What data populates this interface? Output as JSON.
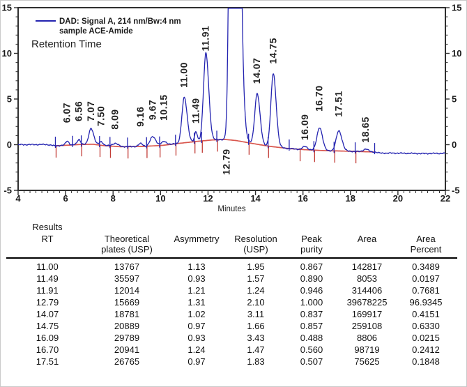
{
  "chart_data": {
    "type": "line",
    "title": "",
    "xlabel": "Minutes",
    "ylabel": "",
    "xlim": [
      4,
      22
    ],
    "ylim": [
      -5,
      15
    ],
    "x_major_ticks": [
      4,
      6,
      8,
      10,
      12,
      14,
      16,
      18,
      20,
      22
    ],
    "x_minor_step": 0.25,
    "y_major_ticks": [
      15,
      10,
      5,
      0,
      -5
    ],
    "y_minor_step": 1,
    "grid": false,
    "legend": {
      "line1": "DAD: Signal A, 214 nm/Bw:4 nm",
      "line2": "sample ACE-Amide",
      "retention_label": "Retention Time",
      "position": "top-left"
    },
    "series_color": "#2323b0",
    "baseline_color": "#d9574e",
    "tick_down_color": "#c23b35",
    "frame_color": "#2f2f2f",
    "peaks": [
      {
        "rt": "6.07",
        "t": 6.07,
        "h": 0.45,
        "sl": 0.07,
        "sr": 0.07,
        "gap": 26
      },
      {
        "rt": "6.56",
        "t": 6.56,
        "h": 0.55,
        "sl": 0.07,
        "sr": 0.07,
        "gap": 26
      },
      {
        "rt": "7.07",
        "t": 7.07,
        "h": 1.75,
        "sl": 0.09,
        "sr": 0.11,
        "gap": 10
      },
      {
        "rt": "7.50",
        "t": 7.5,
        "h": 0.4,
        "sl": 0.08,
        "sr": 0.08,
        "gap": 22
      },
      {
        "rt": "8.09",
        "t": 8.09,
        "h": 0.32,
        "sl": 0.13,
        "sr": 0.13,
        "gap": 20
      },
      {
        "rt": "9.16",
        "t": 9.16,
        "h": 0.32,
        "sl": 0.09,
        "sr": 0.09,
        "gap": 24
      },
      {
        "rt": "9.67",
        "t": 9.67,
        "h": 1.0,
        "sl": 0.11,
        "sr": 0.13,
        "gap": 24
      },
      {
        "rt": "10.15",
        "t": 10.15,
        "h": 0.4,
        "sl": 0.11,
        "sr": 0.11,
        "gap": 30
      },
      {
        "rt": "11.00",
        "t": 11.0,
        "h": 4.95,
        "sl": 0.1,
        "sr": 0.12,
        "gap": 14
      },
      {
        "rt": "11.49",
        "t": 11.49,
        "h": 1.05,
        "sl": 0.055,
        "sr": 0.06,
        "gap": 12
      },
      {
        "rt": "11.91",
        "t": 11.91,
        "h": 9.55,
        "sl": 0.1,
        "sr": 0.12,
        "gap": 3
      },
      {
        "rt": "12.79",
        "t": 12.79,
        "center": 13.05,
        "h": 120,
        "sl": 0.1,
        "sr": 0.19,
        "below": true
      },
      {
        "rt": "14.07",
        "t": 14.07,
        "h": 5.55,
        "sl": 0.1,
        "sr": 0.12,
        "gap": 14
      },
      {
        "rt": "14.75",
        "t": 14.75,
        "h": 8.0,
        "sl": 0.1,
        "sr": 0.12,
        "gap": 14
      },
      {
        "rt": "16.09",
        "t": 16.09,
        "h": 0.35,
        "sl": 0.1,
        "sr": 0.1,
        "gap": 9
      },
      {
        "rt": "16.70",
        "t": 16.7,
        "h": 2.5,
        "sl": 0.11,
        "sr": 0.12,
        "gap": 23
      },
      {
        "rt": "17.51",
        "t": 17.51,
        "h": 2.2,
        "sl": 0.11,
        "sr": 0.13,
        "gap": 20
      },
      {
        "rt": "18.65",
        "t": 18.65,
        "h": 0.3,
        "sl": 0.1,
        "sr": 0.1,
        "gap": 9
      }
    ],
    "drift_points": [
      [
        4,
        0.0
      ],
      [
        5.2,
        0.02
      ],
      [
        5.55,
        -0.12
      ],
      [
        6.1,
        -0.05
      ],
      [
        6.6,
        0.02
      ],
      [
        7.15,
        0.05
      ],
      [
        7.6,
        -0.1
      ],
      [
        8.3,
        -0.22
      ],
      [
        9.2,
        -0.2
      ],
      [
        10.1,
        -0.07
      ],
      [
        10.9,
        0.18
      ],
      [
        11.6,
        0.38
      ],
      [
        12.2,
        0.52
      ],
      [
        12.7,
        0.58
      ],
      [
        13.2,
        0.45
      ],
      [
        13.9,
        0.12
      ],
      [
        14.6,
        -0.18
      ],
      [
        15.4,
        -0.42
      ],
      [
        16.1,
        -0.55
      ],
      [
        16.9,
        -0.65
      ],
      [
        17.7,
        -0.7
      ],
      [
        18.4,
        -0.75
      ],
      [
        19.0,
        -0.8
      ],
      [
        19.25,
        -0.92
      ],
      [
        20.0,
        -0.93
      ],
      [
        21.0,
        -0.97
      ],
      [
        22.0,
        -0.95
      ]
    ],
    "baseline_range": [
      5.55,
      19.0
    ],
    "integration_ticks_up": [
      5.57,
      6.3,
      6.66,
      7.43,
      7.87,
      8.61,
      9.41,
      9.96,
      10.63,
      11.42,
      11.73,
      12.37,
      13.71,
      14.53,
      15.42,
      16.46,
      17.31,
      18.2,
      19.02
    ],
    "integration_ticks_down": [
      5.6,
      6.68,
      7.45,
      7.89,
      8.63,
      9.43,
      9.98,
      10.65,
      11.45,
      11.76,
      12.4,
      13.73,
      14.55,
      15.88,
      16.49,
      17.34,
      18.23
    ],
    "label_below_y": 250
  },
  "results_table": {
    "header_lines": [
      [
        "Results",
        "RT",
        ""
      ],
      [
        "",
        "Theoretical",
        "plates (USP)"
      ],
      [
        "",
        "Asymmetry",
        ""
      ],
      [
        "",
        "Resolution",
        "(USP)"
      ],
      [
        "",
        "Peak",
        "purity"
      ],
      [
        "",
        "Area",
        ""
      ],
      [
        "",
        "Area",
        "Percent"
      ]
    ],
    "rows": [
      [
        "11.00",
        "13767",
        "1.13",
        "1.95",
        "0.867",
        "142817",
        "0.3489"
      ],
      [
        "11.49",
        "35597",
        "0.93",
        "1.57",
        "0.890",
        "8053",
        "0.0197"
      ],
      [
        "11.91",
        "12014",
        "1.21",
        "1.24",
        "0.946",
        "314406",
        "0.7681"
      ],
      [
        "12.79",
        "15669",
        "1.31",
        "2.10",
        "1.000",
        "39678225",
        "96.9345"
      ],
      [
        "14.07",
        "18781",
        "1.02",
        "3.11",
        "0.837",
        "169917",
        "0.4151"
      ],
      [
        "14.75",
        "20889",
        "0.97",
        "1.66",
        "0.857",
        "259108",
        "0.6330"
      ],
      [
        "16.09",
        "29789",
        "0.93",
        "3.43",
        "0.488",
        "8806",
        "0.0215"
      ],
      [
        "16.70",
        "20941",
        "1.24",
        "1.47",
        "0.560",
        "98719",
        "0.2412"
      ],
      [
        "17.51",
        "26765",
        "0.97",
        "1.83",
        "0.507",
        "75625",
        "0.1848"
      ]
    ]
  }
}
